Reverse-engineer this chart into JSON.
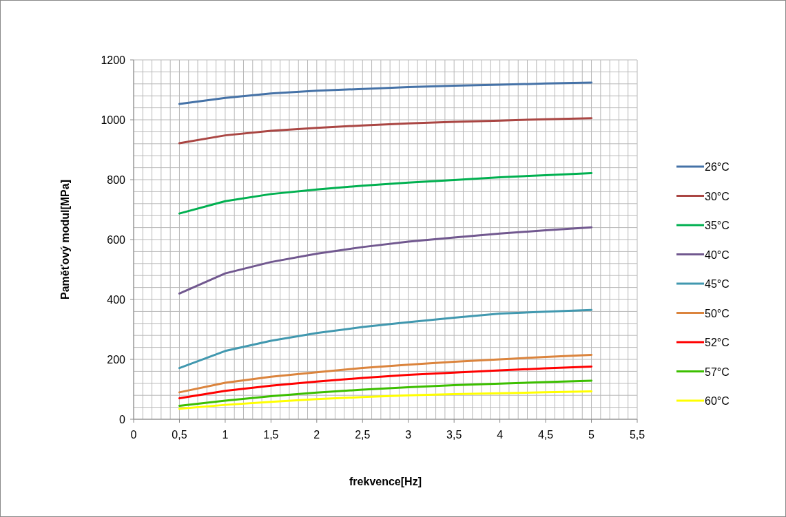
{
  "chart_data": {
    "type": "line",
    "xlabel": "frekvence[Hz]",
    "ylabel": "Paměťový modul[MPa]",
    "x": [
      0.5,
      1,
      1.5,
      2,
      2.5,
      3,
      3.5,
      4,
      4.5,
      5
    ],
    "xlim": [
      0,
      5.5
    ],
    "xticks": [
      0,
      {
        "value": 0.5,
        "label": "0,5"
      },
      1,
      {
        "value": 1.5,
        "label": "1,5"
      },
      2,
      {
        "value": 2.5,
        "label": "2,5"
      },
      3,
      {
        "value": 3.5,
        "label": "3,5"
      },
      4,
      {
        "value": 4.5,
        "label": "4,5"
      },
      5,
      {
        "value": 5.5,
        "label": "5,5"
      }
    ],
    "ylim": [
      0,
      1200
    ],
    "yticks": [
      0,
      200,
      400,
      600,
      800,
      1000,
      1200
    ],
    "grid": true,
    "legend": "right",
    "marker": "none",
    "line_style": "solid",
    "series": [
      {
        "name": "26°C",
        "color": "#4572a7",
        "values": [
          1053,
          1073,
          1088,
          1097,
          1103,
          1109,
          1114,
          1117,
          1121,
          1124
        ]
      },
      {
        "name": "30°C",
        "color": "#aa4643",
        "values": [
          922,
          948,
          963,
          973,
          981,
          988,
          993,
          997,
          1002,
          1005
        ]
      },
      {
        "name": "35°C",
        "color": "#00b050",
        "values": [
          687,
          728,
          752,
          767,
          780,
          790,
          799,
          808,
          815,
          822
        ]
      },
      {
        "name": "40°C",
        "color": "#71588f",
        "values": [
          420,
          487,
          525,
          553,
          575,
          593,
          607,
          620,
          631,
          641
        ]
      },
      {
        "name": "45°C",
        "color": "#4198af",
        "values": [
          171,
          228,
          262,
          288,
          308,
          324,
          339,
          353,
          359,
          365
        ]
      },
      {
        "name": "50°C",
        "color": "#db843d",
        "values": [
          90,
          122,
          142,
          157,
          171,
          182,
          192,
          200,
          208,
          215
        ]
      },
      {
        "name": "52°C",
        "color": "#ff0000",
        "values": [
          70,
          95,
          112,
          126,
          138,
          148,
          156,
          163,
          170,
          176
        ]
      },
      {
        "name": "57°C",
        "color": "#3cbf00",
        "values": [
          45,
          62,
          77,
          89,
          99,
          107,
          114,
          119,
          124,
          129
        ]
      },
      {
        "name": "60°C",
        "color": "#ffff00",
        "values": [
          35,
          48,
          58,
          67,
          74,
          80,
          84,
          87,
          90,
          93
        ]
      }
    ]
  }
}
